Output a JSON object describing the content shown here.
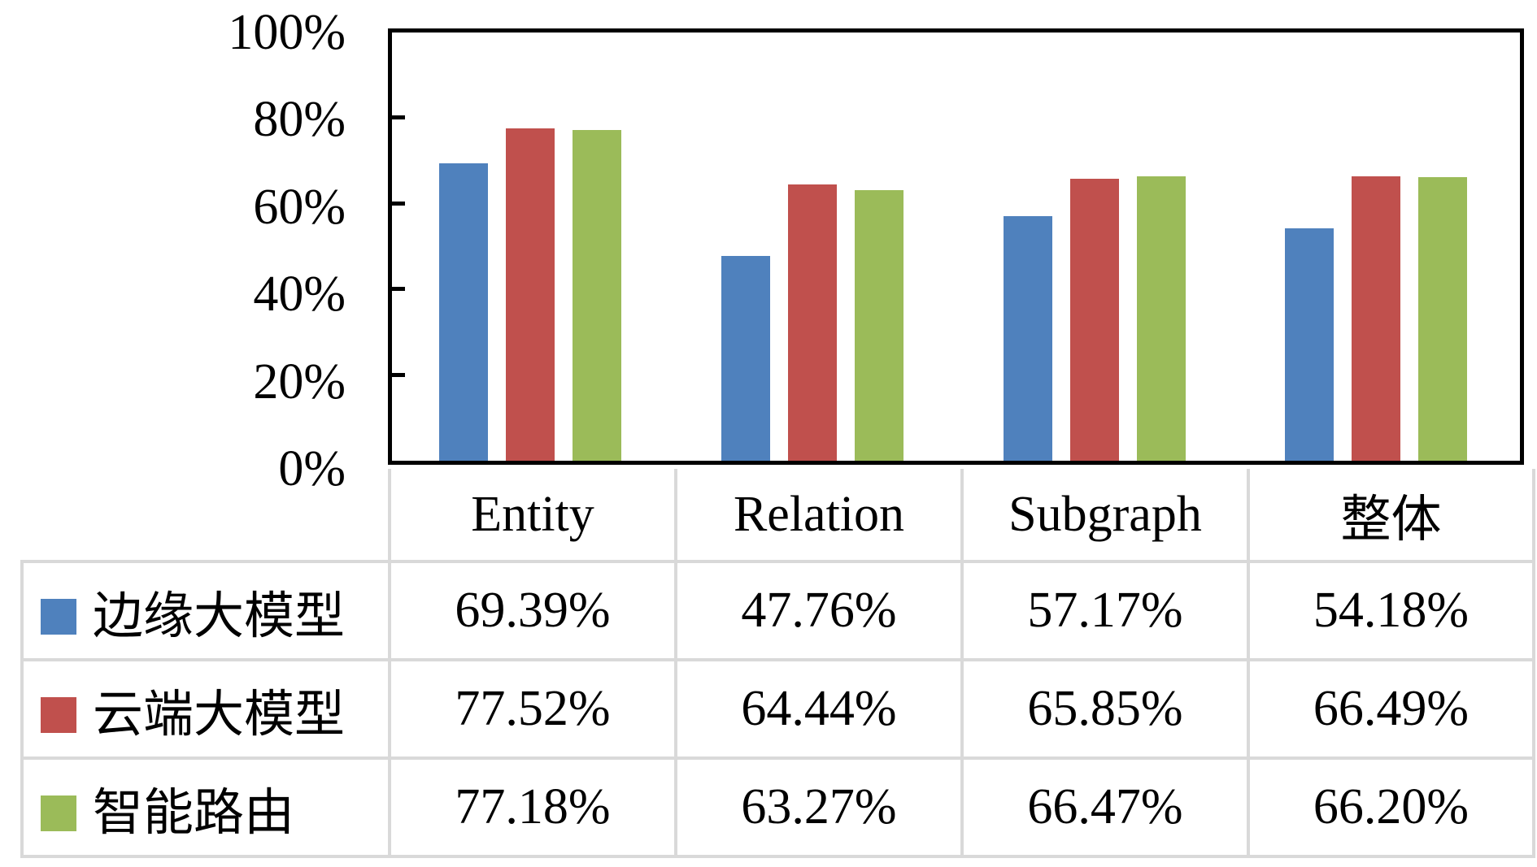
{
  "chart_data": {
    "type": "bar",
    "title": "",
    "xlabel": "",
    "ylabel": "",
    "ylim": [
      0,
      100
    ],
    "grid": false,
    "legend_position": "table-left",
    "ytick_labels": [
      "0%",
      "20%",
      "40%",
      "60%",
      "80%",
      "100%"
    ],
    "categories": [
      "Entity",
      "Relation",
      "Subgraph",
      "整体"
    ],
    "series": [
      {
        "name": "边缘大模型",
        "color": "#4F81BD",
        "values": [
          69.39,
          47.76,
          57.17,
          54.18
        ],
        "display": [
          "69.39%",
          "47.76%",
          "57.17%",
          "54.18%"
        ]
      },
      {
        "name": "云端大模型",
        "color": "#C0504D",
        "values": [
          77.52,
          64.44,
          65.85,
          66.49
        ],
        "display": [
          "77.52%",
          "64.44%",
          "65.85%",
          "66.49%"
        ]
      },
      {
        "name": "智能路由",
        "color": "#9BBB59",
        "values": [
          77.18,
          63.27,
          66.47,
          66.2
        ],
        "display": [
          "77.18%",
          "63.27%",
          "66.47%",
          "66.20%"
        ]
      }
    ],
    "colors": {
      "axis": "#000000",
      "table_border": "#D9D9D9",
      "background": "#FFFFFF"
    }
  }
}
